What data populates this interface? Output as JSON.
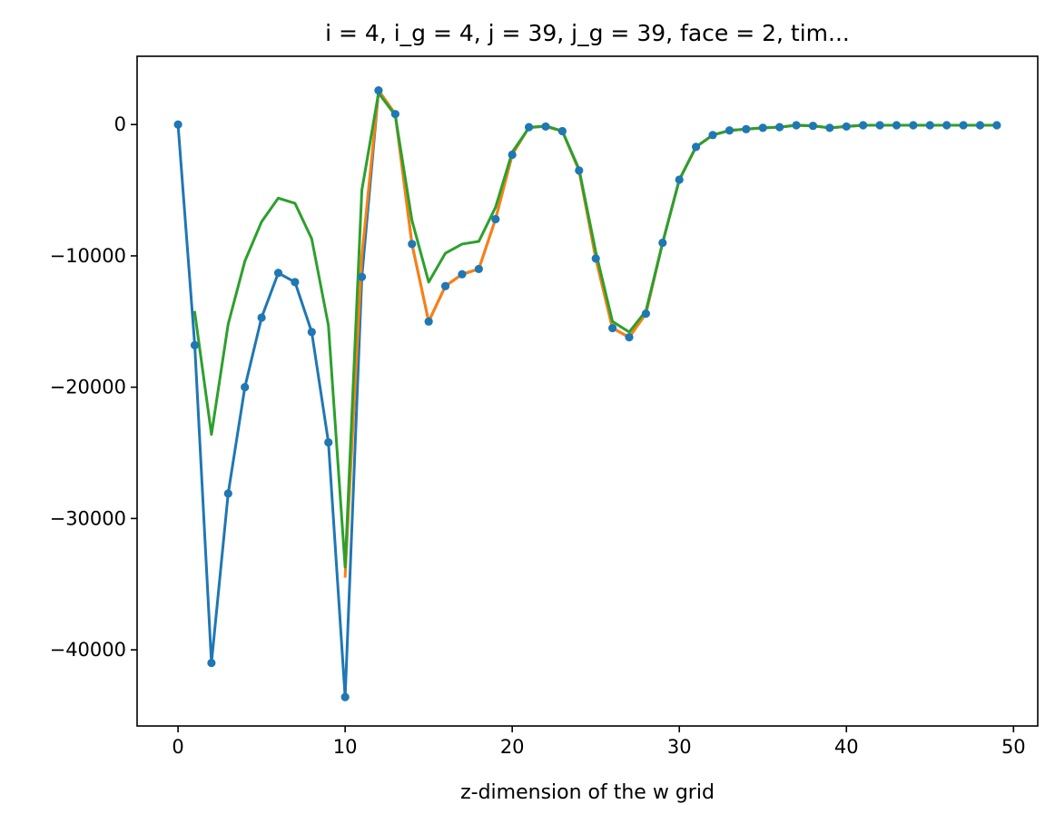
{
  "chart_data": {
    "type": "line",
    "title": "i = 4, i_g = 4, j = 39, j_g = 39, face = 2, tim...",
    "xlabel": "z-dimension of the w grid",
    "ylabel": "",
    "xlim": [
      -2.45,
      51.45
    ],
    "ylim": [
      -45800,
      5200
    ],
    "xticks": [
      0,
      10,
      20,
      30,
      40,
      50
    ],
    "yticks": [
      0,
      -10000,
      -20000,
      -30000,
      -40000
    ],
    "ytick_labels": [
      "0",
      "−10000",
      "−20000",
      "−30000",
      "−40000"
    ],
    "grid": false,
    "series": [
      {
        "color": "#1f77b4",
        "markers": true,
        "x": [
          0,
          1,
          2,
          3,
          4,
          5,
          6,
          7,
          8,
          9,
          10,
          11,
          12,
          13,
          14,
          15,
          16,
          17,
          18,
          19,
          20,
          21,
          22,
          23,
          24,
          25,
          26,
          27,
          28,
          29,
          30,
          31,
          32,
          33,
          34,
          35,
          36,
          37,
          38,
          39,
          40,
          41,
          42,
          43,
          44,
          45,
          46,
          47,
          48,
          49
        ],
        "values": [
          0,
          -16800,
          -41000,
          -28100,
          -20000,
          -14700,
          -11300,
          -12000,
          -15800,
          -24200,
          -43600,
          -11600,
          2600,
          800,
          -9100,
          -15000,
          -12300,
          -11400,
          -11000,
          -7200,
          -2300,
          -200,
          -150,
          -500,
          -3500,
          -10200,
          -15500,
          -16200,
          -14400,
          -9000,
          -4200,
          -1700,
          -800,
          -450,
          -350,
          -250,
          -200,
          -50,
          -100,
          -250,
          -150,
          -50,
          -50,
          -50,
          -50,
          -50,
          -50,
          -50,
          -50,
          -50
        ]
      },
      {
        "color": "#ff7f0e",
        "markers": false,
        "x": [
          10,
          11,
          12,
          13,
          14,
          15,
          16,
          17,
          18,
          19,
          20,
          21,
          22,
          23,
          24,
          25,
          26,
          27,
          28,
          29,
          30,
          31,
          32,
          33,
          34,
          35,
          36,
          37,
          38,
          39,
          40,
          41,
          42,
          43,
          44,
          45,
          46,
          47,
          48,
          49
        ],
        "values": [
          -34400,
          -10000,
          2600,
          800,
          -9100,
          -15000,
          -12300,
          -11400,
          -11000,
          -7200,
          -2300,
          -200,
          -150,
          -500,
          -3500,
          -10200,
          -15500,
          -16200,
          -14400,
          -9000,
          -4200,
          -1700,
          -800,
          -450,
          -350,
          -250,
          -200,
          -50,
          -100,
          -250,
          -150,
          -50,
          -50,
          -50,
          -50,
          -50,
          -50,
          -50,
          -50,
          -50
        ]
      },
      {
        "color": "#2ca02c",
        "markers": false,
        "x": [
          1,
          2,
          3,
          4,
          5,
          6,
          7,
          8,
          9,
          10,
          11,
          12,
          13,
          14,
          15,
          16,
          17,
          18,
          19,
          20,
          21,
          22,
          23,
          24,
          25,
          26,
          27,
          28,
          29,
          30,
          31,
          32,
          33,
          34,
          35,
          36,
          37,
          38,
          39,
          40,
          41,
          42,
          43,
          44,
          45,
          46,
          47,
          48,
          49
        ],
        "values": [
          -14300,
          -23600,
          -15200,
          -10400,
          -7400,
          -5600,
          -6000,
          -8700,
          -15300,
          -33700,
          -5000,
          2400,
          700,
          -7300,
          -12000,
          -9800,
          -9100,
          -8900,
          -6300,
          -2100,
          -250,
          -100,
          -500,
          -3400,
          -9700,
          -15000,
          -15800,
          -14200,
          -9000,
          -4200,
          -1700,
          -800,
          -450,
          -350,
          -250,
          -200,
          -50,
          -100,
          -250,
          -150,
          -50,
          -50,
          -50,
          -50,
          -50,
          -50,
          -50,
          -50,
          -50
        ]
      }
    ]
  }
}
